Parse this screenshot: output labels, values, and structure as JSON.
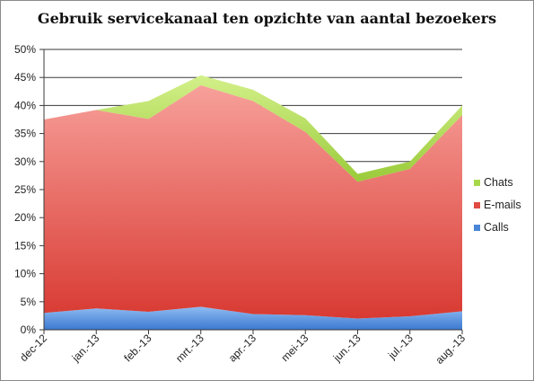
{
  "chart_data": {
    "type": "area",
    "stacked": true,
    "title": "Gebruik servicekanaal ten opzichte van aantal bezoekers",
    "categories": [
      "dec-12",
      "jan.-13",
      "feb.-13",
      "mrt.-13",
      "apr.-13",
      "mei-13",
      "jun.-13",
      "jul.-13",
      "aug.-13"
    ],
    "series": [
      {
        "name": "Calls",
        "color": "#4a86d8",
        "values": [
          3.0,
          3.8,
          3.2,
          4.1,
          2.8,
          2.6,
          2.0,
          2.4,
          3.3
        ]
      },
      {
        "name": "E-mails",
        "color": "#e04a42",
        "values": [
          34.5,
          35.4,
          34.4,
          39.5,
          38.0,
          32.7,
          24.4,
          26.3,
          35.0
        ]
      },
      {
        "name": "Chats",
        "color": "#a8d84a",
        "values": [
          0.0,
          0.0,
          3.2,
          1.8,
          2.0,
          2.4,
          1.4,
          1.3,
          1.7
        ]
      }
    ],
    "ylim": [
      0,
      50
    ],
    "yticks": [
      "0%",
      "5%",
      "10%",
      "15%",
      "20%",
      "25%",
      "30%",
      "35%",
      "40%",
      "45%",
      "50%"
    ],
    "ytick_values": [
      0,
      5,
      10,
      15,
      20,
      25,
      30,
      35,
      40,
      45,
      50
    ],
    "grid": true,
    "legend_position": "right",
    "legend_order": [
      "Chats",
      "E-mails",
      "Calls"
    ]
  }
}
